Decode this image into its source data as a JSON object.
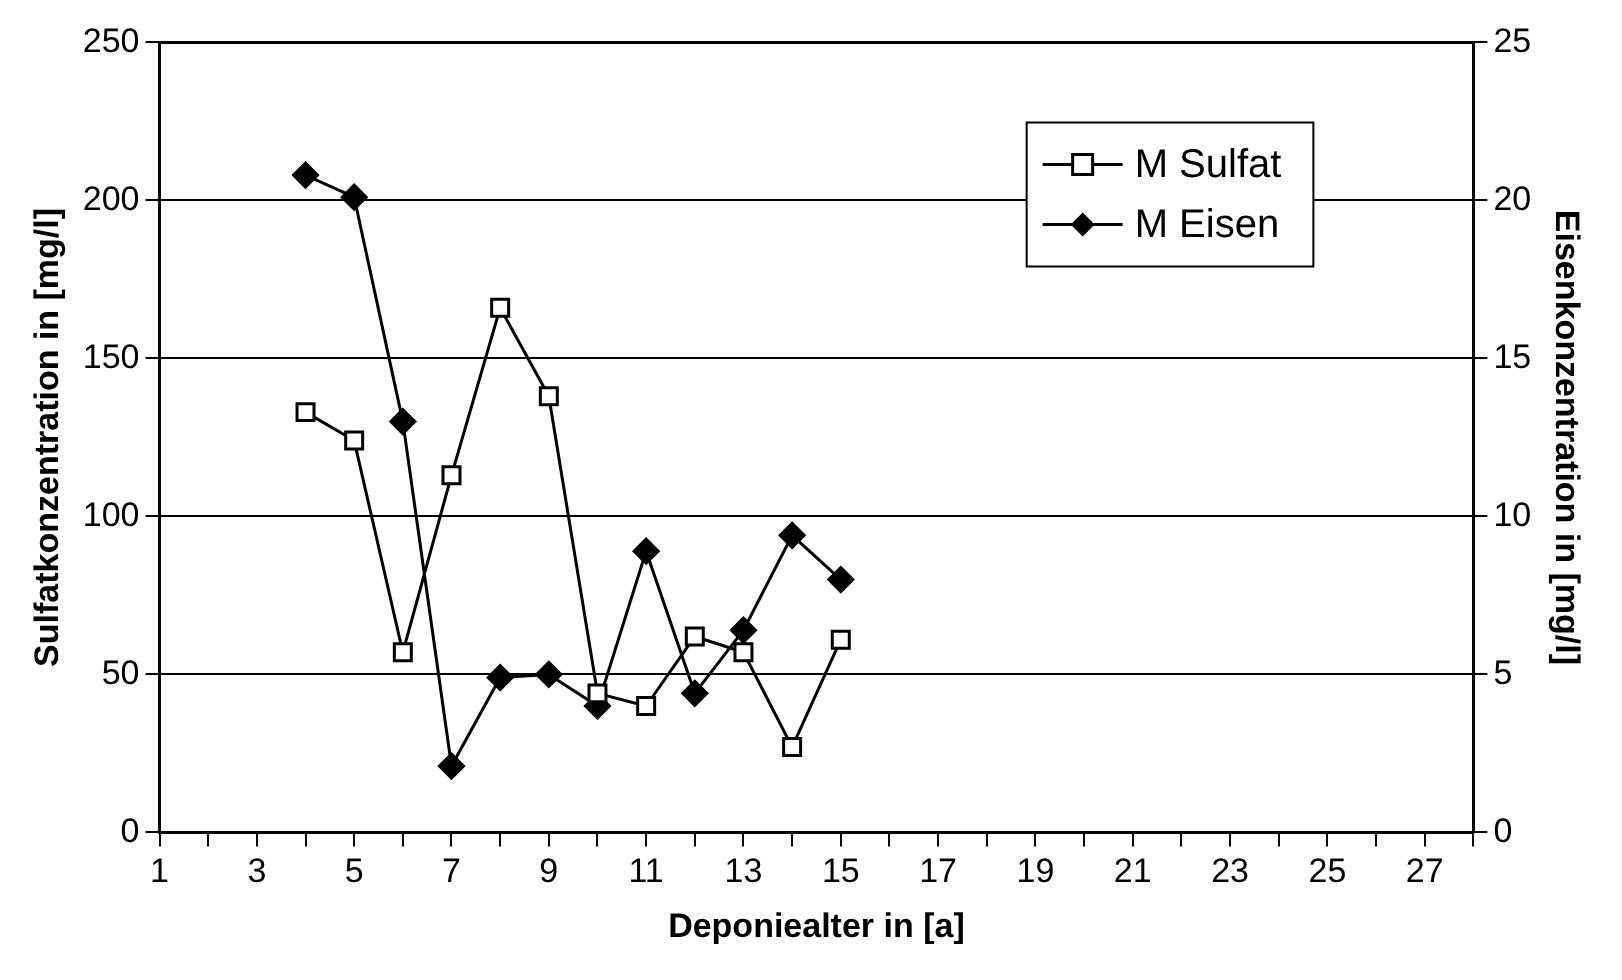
{
  "chart_data": {
    "type": "line",
    "xlabel": "Deponiealter in [a]",
    "ylabel": "Sulfatkonzentration in [mg/l]",
    "y2label": "Eisenkonzentration in [mg/l]",
    "x": [
      4,
      5,
      6,
      7,
      8,
      9,
      10,
      11,
      12,
      13,
      14,
      15
    ],
    "series": [
      {
        "name": "M Sulfat",
        "color": "#000000",
        "marker": "square",
        "values": [
          133,
          124,
          57,
          113,
          166,
          138,
          44,
          40,
          62,
          57,
          27,
          61
        ]
      },
      {
        "name": "M Eisen",
        "color": "#000000",
        "marker": "diamond",
        "axis": "y2",
        "values": [
          20.8,
          20.1,
          13.0,
          2.1,
          4.9,
          5.0,
          4.0,
          8.9,
          4.4,
          6.4,
          9.4,
          8.0
        ]
      }
    ],
    "xlim": [
      1,
      28
    ],
    "xticks": [
      1,
      {
        "value": 2,
        "label": null
      },
      3,
      {
        "value": 4,
        "label": null
      },
      5,
      {
        "value": 6,
        "label": null
      },
      7,
      {
        "value": 8,
        "label": null
      },
      9,
      {
        "value": 10,
        "label": null
      },
      11,
      {
        "value": 12,
        "label": null
      },
      13,
      {
        "value": 14,
        "label": null
      },
      15,
      {
        "value": 16,
        "label": null
      },
      17,
      {
        "value": 18,
        "label": null
      },
      19,
      {
        "value": 20,
        "label": null
      },
      21,
      {
        "value": 22,
        "label": null
      },
      23,
      {
        "value": 24,
        "label": null
      },
      25,
      {
        "value": 26,
        "label": null
      },
      27,
      {
        "value": 28,
        "label": null
      }
    ],
    "ylim": [
      0,
      250
    ],
    "yticks": [
      0,
      50,
      100,
      150,
      200,
      250
    ],
    "y2lim": [
      0,
      25
    ],
    "y2ticks": [
      0,
      5,
      10,
      15,
      20,
      25
    ],
    "grid": "y",
    "legend": "top right",
    "line_style": "solid"
  }
}
